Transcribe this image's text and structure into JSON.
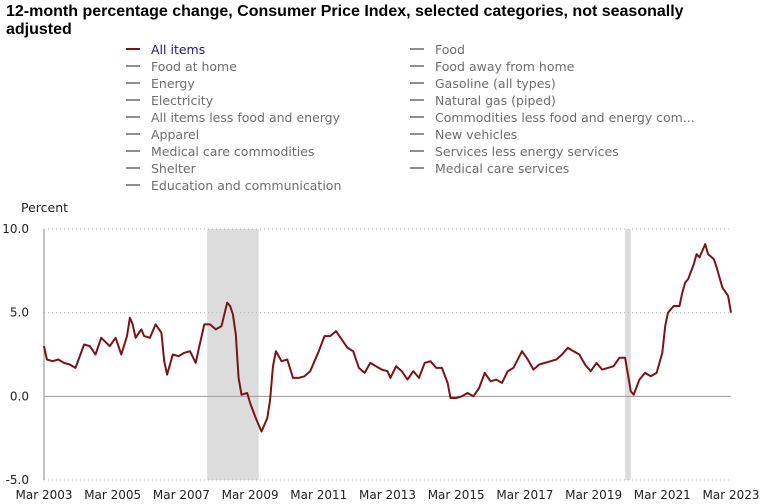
{
  "title": "12-month percentage change, Consumer Price Index, selected categories, not seasonally adjusted",
  "legend": {
    "left": [
      "All items",
      "Food at home",
      "Energy",
      "Electricity",
      "All items less food and energy",
      "Apparel",
      "Medical care commodities",
      "Shelter",
      "Education and communication"
    ],
    "right": [
      "Food",
      "Food away from home",
      "Gasoline (all types)",
      "Natural gas (piped)",
      "Commodities less food and energy com...",
      "New vehicles",
      "Services less energy services",
      "Medical care services"
    ]
  },
  "colors": {
    "active_series": "#7b1416",
    "inactive_series": "#8e8e8e",
    "recession_shade": "#dcdcdc"
  },
  "chart_data": {
    "type": "line",
    "ylabel": "Percent",
    "ylim": [
      -5.0,
      10.0
    ],
    "yticks": [
      "10.0",
      "5.0",
      "0.0",
      "-5.0"
    ],
    "xticks": [
      "Mar 2003",
      "Mar 2005",
      "Mar 2007",
      "Mar 2009",
      "Mar 2011",
      "Mar 2013",
      "Mar 2015",
      "Mar 2017",
      "Mar 2019",
      "Mar 2021",
      "Mar 2023"
    ],
    "grid": "horizontal dotted",
    "recessions": [
      [
        "2007-12",
        "2009-06"
      ],
      [
        "2020-02",
        "2020-04"
      ]
    ],
    "series": [
      {
        "name": "All items",
        "points": [
          [
            "2003-03",
            3.0
          ],
          [
            "2003-04",
            2.2
          ],
          [
            "2003-06",
            2.1
          ],
          [
            "2003-08",
            2.2
          ],
          [
            "2003-10",
            2.0
          ],
          [
            "2003-12",
            1.9
          ],
          [
            "2004-02",
            1.7
          ],
          [
            "2004-05",
            3.1
          ],
          [
            "2004-07",
            3.0
          ],
          [
            "2004-09",
            2.5
          ],
          [
            "2004-11",
            3.5
          ],
          [
            "2005-02",
            3.0
          ],
          [
            "2005-04",
            3.5
          ],
          [
            "2005-06",
            2.5
          ],
          [
            "2005-08",
            3.6
          ],
          [
            "2005-09",
            4.7
          ],
          [
            "2005-10",
            4.3
          ],
          [
            "2005-11",
            3.5
          ],
          [
            "2006-01",
            4.0
          ],
          [
            "2006-02",
            3.6
          ],
          [
            "2006-04",
            3.5
          ],
          [
            "2006-06",
            4.3
          ],
          [
            "2006-08",
            3.8
          ],
          [
            "2006-09",
            2.1
          ],
          [
            "2006-10",
            1.3
          ],
          [
            "2006-12",
            2.5
          ],
          [
            "2007-02",
            2.4
          ],
          [
            "2007-04",
            2.6
          ],
          [
            "2007-06",
            2.7
          ],
          [
            "2007-08",
            2.0
          ],
          [
            "2007-09",
            2.8
          ],
          [
            "2007-11",
            4.3
          ],
          [
            "2008-01",
            4.3
          ],
          [
            "2008-03",
            4.0
          ],
          [
            "2008-05",
            4.2
          ],
          [
            "2008-07",
            5.6
          ],
          [
            "2008-08",
            5.4
          ],
          [
            "2008-09",
            4.9
          ],
          [
            "2008-10",
            3.7
          ],
          [
            "2008-11",
            1.1
          ],
          [
            "2008-12",
            0.1
          ],
          [
            "2009-02",
            0.2
          ],
          [
            "2009-03",
            -0.4
          ],
          [
            "2009-05",
            -1.3
          ],
          [
            "2009-07",
            -2.1
          ],
          [
            "2009-09",
            -1.3
          ],
          [
            "2009-10",
            -0.2
          ],
          [
            "2009-11",
            1.8
          ],
          [
            "2009-12",
            2.7
          ],
          [
            "2010-02",
            2.1
          ],
          [
            "2010-04",
            2.2
          ],
          [
            "2010-06",
            1.1
          ],
          [
            "2010-08",
            1.1
          ],
          [
            "2010-10",
            1.2
          ],
          [
            "2010-12",
            1.5
          ],
          [
            "2011-03",
            2.7
          ],
          [
            "2011-05",
            3.6
          ],
          [
            "2011-07",
            3.6
          ],
          [
            "2011-09",
            3.9
          ],
          [
            "2011-11",
            3.4
          ],
          [
            "2012-01",
            2.9
          ],
          [
            "2012-03",
            2.7
          ],
          [
            "2012-05",
            1.7
          ],
          [
            "2012-07",
            1.4
          ],
          [
            "2012-09",
            2.0
          ],
          [
            "2012-11",
            1.8
          ],
          [
            "2013-01",
            1.6
          ],
          [
            "2013-03",
            1.5
          ],
          [
            "2013-04",
            1.1
          ],
          [
            "2013-06",
            1.8
          ],
          [
            "2013-08",
            1.5
          ],
          [
            "2013-10",
            1.0
          ],
          [
            "2013-12",
            1.5
          ],
          [
            "2014-02",
            1.1
          ],
          [
            "2014-04",
            2.0
          ],
          [
            "2014-06",
            2.1
          ],
          [
            "2014-08",
            1.7
          ],
          [
            "2014-10",
            1.7
          ],
          [
            "2014-12",
            0.8
          ],
          [
            "2015-01",
            -0.1
          ],
          [
            "2015-03",
            -0.1
          ],
          [
            "2015-05",
            0.0
          ],
          [
            "2015-07",
            0.2
          ],
          [
            "2015-09",
            0.0
          ],
          [
            "2015-11",
            0.5
          ],
          [
            "2016-01",
            1.4
          ],
          [
            "2016-03",
            0.9
          ],
          [
            "2016-05",
            1.0
          ],
          [
            "2016-07",
            0.8
          ],
          [
            "2016-09",
            1.5
          ],
          [
            "2016-11",
            1.7
          ],
          [
            "2017-02",
            2.7
          ],
          [
            "2017-04",
            2.2
          ],
          [
            "2017-06",
            1.6
          ],
          [
            "2017-08",
            1.9
          ],
          [
            "2017-10",
            2.0
          ],
          [
            "2017-12",
            2.1
          ],
          [
            "2018-02",
            2.2
          ],
          [
            "2018-04",
            2.5
          ],
          [
            "2018-06",
            2.9
          ],
          [
            "2018-08",
            2.7
          ],
          [
            "2018-10",
            2.5
          ],
          [
            "2018-12",
            1.9
          ],
          [
            "2019-02",
            1.5
          ],
          [
            "2019-04",
            2.0
          ],
          [
            "2019-06",
            1.6
          ],
          [
            "2019-08",
            1.7
          ],
          [
            "2019-10",
            1.8
          ],
          [
            "2019-12",
            2.3
          ],
          [
            "2020-02",
            2.3
          ],
          [
            "2020-04",
            0.3
          ],
          [
            "2020-05",
            0.1
          ],
          [
            "2020-07",
            1.0
          ],
          [
            "2020-09",
            1.4
          ],
          [
            "2020-11",
            1.2
          ],
          [
            "2021-01",
            1.4
          ],
          [
            "2021-03",
            2.6
          ],
          [
            "2021-04",
            4.2
          ],
          [
            "2021-05",
            5.0
          ],
          [
            "2021-07",
            5.4
          ],
          [
            "2021-09",
            5.4
          ],
          [
            "2021-10",
            6.2
          ],
          [
            "2021-11",
            6.8
          ],
          [
            "2021-12",
            7.0
          ],
          [
            "2022-02",
            7.9
          ],
          [
            "2022-03",
            8.5
          ],
          [
            "2022-04",
            8.3
          ],
          [
            "2022-06",
            9.1
          ],
          [
            "2022-07",
            8.5
          ],
          [
            "2022-09",
            8.2
          ],
          [
            "2022-10",
            7.7
          ],
          [
            "2022-11",
            7.1
          ],
          [
            "2022-12",
            6.5
          ],
          [
            "2023-02",
            6.0
          ],
          [
            "2023-03",
            5.0
          ]
        ]
      }
    ]
  }
}
